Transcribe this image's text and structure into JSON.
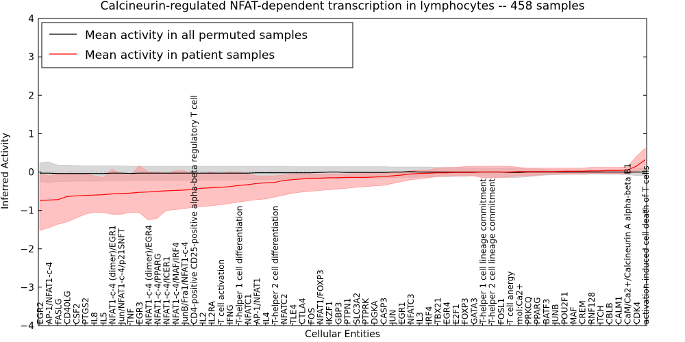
{
  "chart_data": {
    "type": "line",
    "title": "Calcineurin-regulated NFAT-dependent transcription in lymphocytes -- 458 samples",
    "xlabel": "Cellular Entities",
    "ylabel": "Inferred Activity",
    "ylim": [
      -4,
      4
    ],
    "yticks": [
      -4,
      -3,
      -2,
      -1,
      0,
      1,
      2,
      3,
      4
    ],
    "reference_line_y": 0,
    "grid": false,
    "legend_position": "top-left",
    "colors": {
      "permuted": "#000000",
      "patient": "#ff0000",
      "permuted_band": "#c8c8c8",
      "patient_band": "#ff9a9a"
    },
    "categories": [
      "EGR2",
      "AP-1/NFAT1-c-4",
      "FASLG",
      "CD40LG",
      "CSF2",
      "PTGS2",
      "IL8",
      "IL5",
      "NFAT1-c-4 (dimer)/EGR1",
      "Jun/NFAT1-c-4/p21SNFT",
      "TNF",
      "EGR3",
      "NFAT1-c-4 (dimer)/EGR4",
      "NFAT1-c-4/PPARG",
      "NFAT1-c-4/ICER1",
      "NFAT1-c-4/MAF/IRF4",
      "JunB/Fra1/NFAT1-c-4",
      "CD4-positive CD25-positive alpha-beta regulatory T cell",
      "IL2",
      "IL2RA",
      "T cell activation",
      "IFNG",
      "T-helper 1 cell differentiation",
      "NFATC1",
      "AP-1/NFAT1",
      "IL4",
      "T-helper 2 cell differentiation",
      "NFATC2",
      "TLE4",
      "CTLA4",
      "FOS",
      "NFAT1/FOXP3",
      "IKZF1",
      "GBP3",
      "PTPN1",
      "SLC3A2",
      "PTPRK",
      "DGKA",
      "CASP3",
      "JUN",
      "EGR1",
      "NFATC3",
      "IL3",
      "IRF4",
      "TBX21",
      "EGR4",
      "E2F1",
      "FOXP3",
      "GATA3",
      "T-helper 1 cell lineage commitment",
      "T-helper 2 cell lineage commitment",
      "FOSL1",
      "T cell anergy",
      "mol:Ca2+",
      "PRKCQ",
      "PPARG",
      "BATF3",
      "JUNB",
      "POU2F1",
      "MAF",
      "CREM",
      "RNF128",
      "ITCH",
      "CBLB",
      "CALM1",
      "CaM/Ca2+/Calcineurin A alpha-beta B1",
      "CDK4",
      "activation-induced cell death of T cells"
    ],
    "series": [
      {
        "name": "Mean activity in all permuted samples",
        "values": [
          -0.03,
          -0.03,
          -0.04,
          -0.04,
          -0.04,
          -0.04,
          -0.04,
          -0.04,
          -0.03,
          -0.03,
          -0.04,
          -0.03,
          -0.03,
          -0.03,
          -0.03,
          -0.03,
          -0.03,
          -0.03,
          -0.03,
          -0.03,
          -0.03,
          -0.03,
          -0.03,
          -0.03,
          -0.02,
          -0.02,
          -0.02,
          -0.02,
          -0.02,
          -0.02,
          -0.02,
          -0.01,
          0.0,
          0.0,
          -0.01,
          -0.01,
          -0.01,
          -0.01,
          -0.01,
          0.0,
          0.0,
          0.01,
          0.0,
          0.0,
          0.0,
          0.0,
          0.0,
          0.0,
          0.0,
          0.0,
          0.0,
          0.0,
          -0.01,
          -0.01,
          0.0,
          0.0,
          0.0,
          0.0,
          0.0,
          0.0,
          0.0,
          0.0,
          0.0,
          0.0,
          0.0,
          0.0,
          0.0,
          0.0
        ],
        "band_upper": [
          0.24,
          0.26,
          0.18,
          0.18,
          0.17,
          0.16,
          0.16,
          0.16,
          0.16,
          0.16,
          0.15,
          0.15,
          0.15,
          0.15,
          0.15,
          0.15,
          0.15,
          0.15,
          0.15,
          0.15,
          0.15,
          0.15,
          0.15,
          0.15,
          0.15,
          0.15,
          0.15,
          0.15,
          0.14,
          0.14,
          0.14,
          0.14,
          0.14,
          0.14,
          0.14,
          0.14,
          0.14,
          0.14,
          0.14,
          0.13,
          0.13,
          0.13,
          0.13,
          0.13,
          0.12,
          0.12,
          0.12,
          0.11,
          0.1,
          0.1,
          0.09,
          0.09,
          0.1,
          0.1,
          0.08,
          0.08,
          0.07,
          0.06,
          0.06,
          0.06,
          0.05,
          0.05,
          0.05,
          0.06,
          0.06,
          0.07,
          0.09,
          0.1
        ],
        "band_lower": [
          -0.25,
          -0.27,
          -0.25,
          -0.25,
          -0.24,
          -0.24,
          -0.24,
          -0.24,
          -0.23,
          -0.23,
          -0.23,
          -0.22,
          -0.22,
          -0.22,
          -0.22,
          -0.22,
          -0.22,
          -0.22,
          -0.21,
          -0.21,
          -0.21,
          -0.21,
          -0.21,
          -0.2,
          -0.2,
          -0.2,
          -0.19,
          -0.19,
          -0.19,
          -0.18,
          -0.18,
          -0.18,
          -0.17,
          -0.17,
          -0.17,
          -0.16,
          -0.16,
          -0.16,
          -0.15,
          -0.15,
          -0.14,
          -0.14,
          -0.13,
          -0.13,
          -0.12,
          -0.12,
          -0.11,
          -0.11,
          -0.1,
          -0.1,
          -0.12,
          -0.14,
          -0.15,
          -0.14,
          -0.12,
          -0.1,
          -0.08,
          -0.07,
          -0.06,
          -0.06,
          -0.06,
          -0.05,
          -0.05,
          -0.06,
          -0.06,
          -0.07,
          -0.09,
          -0.1
        ]
      },
      {
        "name": "Mean activity in patient samples",
        "values": [
          -0.74,
          -0.73,
          -0.72,
          -0.64,
          -0.62,
          -0.61,
          -0.6,
          -0.59,
          -0.57,
          -0.56,
          -0.55,
          -0.53,
          -0.52,
          -0.5,
          -0.49,
          -0.48,
          -0.47,
          -0.45,
          -0.42,
          -0.41,
          -0.4,
          -0.38,
          -0.35,
          -0.33,
          -0.3,
          -0.28,
          -0.27,
          -0.22,
          -0.2,
          -0.18,
          -0.16,
          -0.16,
          -0.15,
          -0.15,
          -0.14,
          -0.14,
          -0.14,
          -0.13,
          -0.12,
          -0.1,
          -0.08,
          -0.05,
          -0.04,
          -0.03,
          -0.02,
          -0.02,
          -0.01,
          -0.01,
          -0.01,
          0.0,
          0.0,
          0.0,
          0.0,
          0.01,
          0.01,
          0.01,
          0.01,
          0.01,
          0.02,
          0.02,
          0.02,
          0.03,
          0.03,
          0.04,
          0.04,
          0.05,
          0.15,
          0.32
        ],
        "band_upper": [
          -0.05,
          -0.1,
          -0.05,
          -0.05,
          -0.05,
          -0.05,
          -0.1,
          -0.15,
          0.07,
          -0.05,
          -0.1,
          0.16,
          0.0,
          0.0,
          -0.05,
          0.03,
          0.03,
          -0.05,
          -0.05,
          0.0,
          -0.05,
          0.0,
          0.0,
          -0.05,
          -0.1,
          -0.1,
          -0.1,
          -0.08,
          -0.05,
          -0.05,
          -0.05,
          -0.05,
          -0.05,
          -0.05,
          -0.05,
          -0.04,
          -0.04,
          -0.03,
          -0.03,
          -0.02,
          0.0,
          0.03,
          0.05,
          0.05,
          0.1,
          0.12,
          0.12,
          0.14,
          0.15,
          0.15,
          0.15,
          0.15,
          0.15,
          0.12,
          0.1,
          0.1,
          0.1,
          0.1,
          0.1,
          0.1,
          0.1,
          0.12,
          0.12,
          0.12,
          0.12,
          0.13,
          0.4,
          0.62
        ],
        "band_lower": [
          -1.52,
          -1.45,
          -1.36,
          -1.3,
          -1.2,
          -1.1,
          -1.05,
          -1.05,
          -1.1,
          -1.1,
          -1.05,
          -1.05,
          -1.25,
          -1.2,
          -1.0,
          -0.98,
          -0.95,
          -0.92,
          -0.9,
          -0.88,
          -0.85,
          -0.82,
          -0.78,
          -0.75,
          -0.72,
          -0.7,
          -0.65,
          -0.6,
          -0.55,
          -0.52,
          -0.5,
          -0.48,
          -0.46,
          -0.44,
          -0.42,
          -0.4,
          -0.38,
          -0.36,
          -0.35,
          -0.3,
          -0.25,
          -0.2,
          -0.18,
          -0.15,
          -0.12,
          -0.1,
          -0.1,
          -0.1,
          -0.1,
          -0.15,
          -0.15,
          -0.14,
          -0.12,
          -0.1,
          -0.1,
          -0.08,
          -0.06,
          -0.05,
          -0.05,
          -0.05,
          -0.05,
          -0.04,
          -0.04,
          -0.04,
          -0.04,
          -0.04,
          0.0,
          0.1
        ]
      }
    ]
  }
}
